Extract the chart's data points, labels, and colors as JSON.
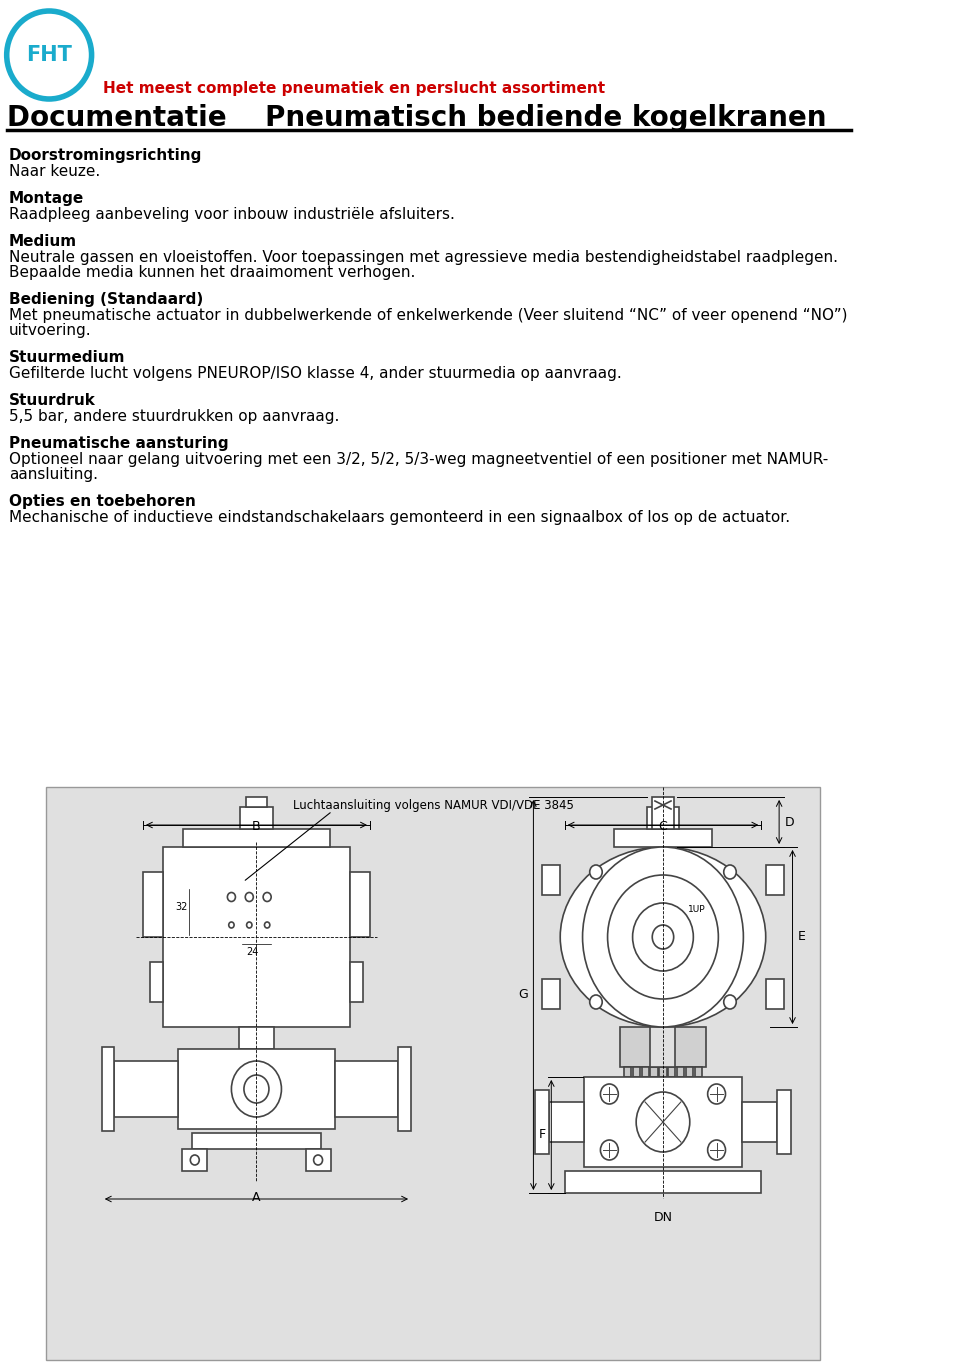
{
  "title_red": "Het meest complete pneumatiek en perslucht assortiment",
  "title_main": "Documentatie    Pneumatisch bediende kogelkranen",
  "logo_text": "FHT",
  "sections": [
    {
      "heading": "Doorstromingsrichting",
      "body": "Naar keuze."
    },
    {
      "heading": "Montage",
      "body": "Raadpleeg aanbeveling voor inbouw industriële afsluiters."
    },
    {
      "heading": "Medium",
      "body": "Neutrale gassen en vloeistoffen. Voor toepassingen met agressieve media bestendigheidstabel raadplegen.\nBepaalde media kunnen het draaimoment verhogen."
    },
    {
      "heading": "Bediening (Standaard)",
      "body": "Met pneumatische actuator in dubbelwerkende of enkelwerkende (Veer sluitend “NC” of veer openend “NO”)\nuitvoering."
    },
    {
      "heading": "Stuurmedium",
      "body": "Gefilterde lucht volgens PNEUROP/ISO klasse 4, ander stuurmedia op aanvraag."
    },
    {
      "heading": "Stuurdruk",
      "body": "5,5 bar, andere stuurdrukken op aanvraag."
    },
    {
      "heading": "Pneumatische aansturing",
      "body": "Optioneel naar gelang uitvoering met een 3/2, 5/2, 5/3-weg magneetventiel of een positioner met NAMUR-\naansluiting."
    },
    {
      "heading": "Opties en toebehoren",
      "body": "Mechanische of inductieve eindstandschakelaars gemonteerd in een signaalbox of los op de actuator."
    }
  ],
  "diagram_label": "Luchtaansluiting volgens NAMUR VDI/VDE 3845",
  "bg_color": "#ffffff",
  "text_color": "#000000",
  "red_color": "#cc0000",
  "blue_color": "#1aabcc",
  "diagram_bg": "#e0e0e0"
}
